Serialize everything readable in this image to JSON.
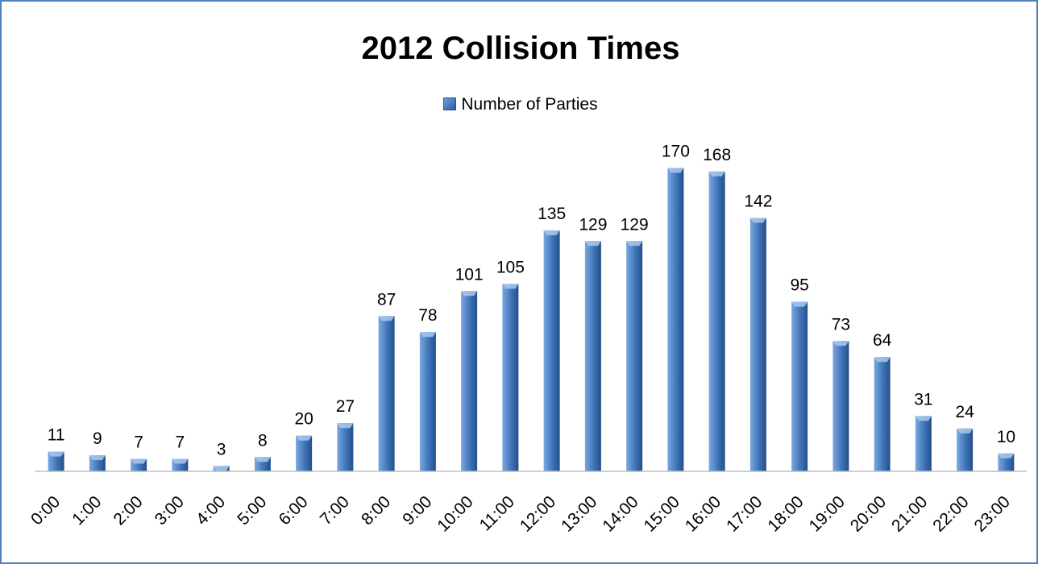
{
  "chart_data": {
    "type": "bar",
    "title": "2012 Collision Times",
    "xlabel": "",
    "ylabel": "",
    "legend_position": "top-center",
    "grid": false,
    "categories": [
      "0:00",
      "1:00",
      "2:00",
      "3:00",
      "4:00",
      "5:00",
      "6:00",
      "7:00",
      "8:00",
      "9:00",
      "10:00",
      "11:00",
      "12:00",
      "13:00",
      "14:00",
      "15:00",
      "16:00",
      "17:00",
      "18:00",
      "19:00",
      "20:00",
      "21:00",
      "22:00",
      "23:00"
    ],
    "series": [
      {
        "name": "Number of Parties",
        "values": [
          11,
          9,
          7,
          7,
          3,
          8,
          20,
          27,
          87,
          78,
          101,
          105,
          135,
          129,
          129,
          170,
          168,
          142,
          95,
          73,
          64,
          31,
          24,
          10
        ]
      }
    ],
    "ylim": [
      0,
      200
    ],
    "colors": {
      "bar_light": "#7aa9e0",
      "bar_mid": "#3f74b8",
      "bar_dark": "#244f8a",
      "frame": "#4f81bd",
      "axis": "#bfbfbf"
    }
  }
}
